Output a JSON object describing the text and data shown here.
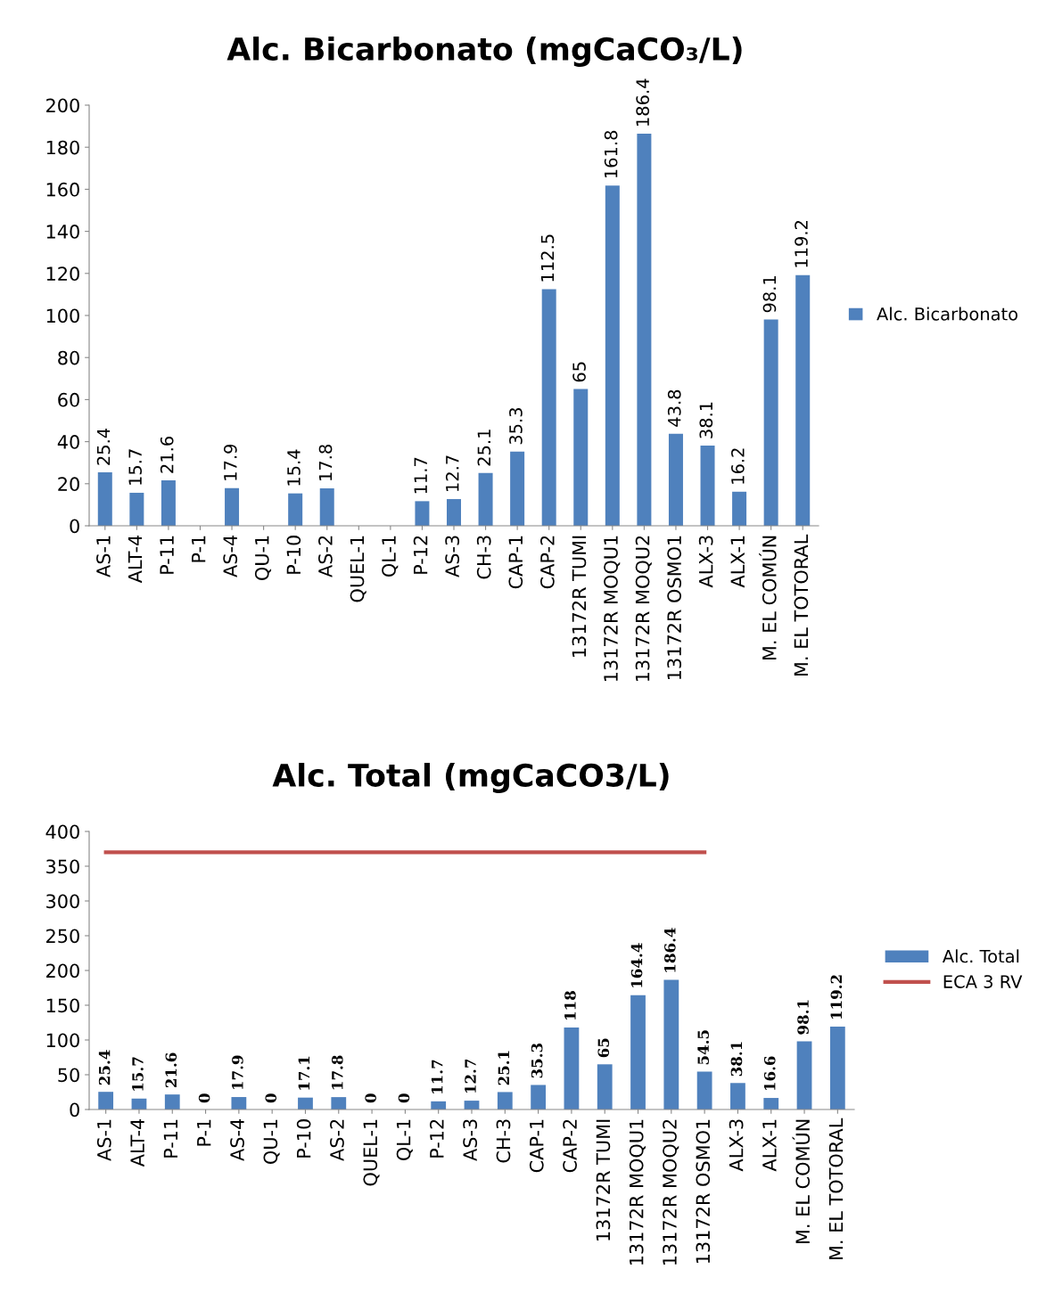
{
  "chart_data": [
    {
      "type": "bar",
      "title": "Alc. Bicarbonato (mgCaCO₃/L)",
      "categories": [
        "AS-1",
        "ALT-4",
        "P-11",
        "P-1",
        "AS-4",
        "QU-1",
        "P-10",
        "AS-2",
        "QUEL-1",
        "QL-1",
        "P-12",
        "AS-3",
        "CH-3",
        "CAP-1",
        "CAP-2",
        "13172R TUMI",
        "13172R MOQU1",
        "13172R MOQU2",
        "13172R OSMO1",
        "ALX-3",
        "ALX-1",
        "M. EL COMÚN",
        "M. EL TOTORAL"
      ],
      "series": [
        {
          "name": "Alc. Bicarbonato",
          "color": "#4f81bd",
          "values": [
            25.4,
            15.7,
            21.6,
            null,
            17.9,
            null,
            15.4,
            17.8,
            null,
            null,
            11.7,
            12.7,
            25.1,
            35.3,
            112.5,
            65,
            161.8,
            186.4,
            43.8,
            38.1,
            16.2,
            98.1,
            119.2
          ],
          "value_labels": [
            "25.4",
            "15.7",
            "21.6",
            null,
            "17.9",
            null,
            "15.4",
            "17.8",
            null,
            null,
            "11.7",
            "12.7",
            "25.1",
            "35.3",
            "112.5",
            "65",
            "161.8",
            "186.4",
            "43.8",
            "38.1",
            "16.2",
            "98.1",
            "119.2"
          ]
        }
      ],
      "ylim": [
        0,
        200
      ],
      "yticks": [
        0,
        20,
        40,
        60,
        80,
        100,
        120,
        140,
        160,
        180,
        200
      ],
      "legend": "right"
    },
    {
      "type": "bar",
      "title": "Alc. Total (mgCaCO3/L)",
      "categories": [
        "AS-1",
        "ALT-4",
        "P-11",
        "P-1",
        "AS-4",
        "QU-1",
        "P-10",
        "AS-2",
        "QUEL-1",
        "QL-1",
        "P-12",
        "AS-3",
        "CH-3",
        "CAP-1",
        "CAP-2",
        "13172R TUMI",
        "13172R MOQU1",
        "13172R MOQU2",
        "13172R OSMO1",
        "ALX-3",
        "ALX-1",
        "M. EL COMÚN",
        "M. EL TOTORAL"
      ],
      "series": [
        {
          "name": "Alc. Total",
          "color": "#4f81bd",
          "values": [
            25.4,
            15.7,
            21.6,
            0,
            17.9,
            0,
            17.1,
            17.8,
            0,
            0,
            11.7,
            12.7,
            25.1,
            35.3,
            118,
            65,
            164.4,
            186.4,
            54.5,
            38.1,
            16.6,
            98.1,
            119.2
          ],
          "value_labels": [
            "25.4",
            "15.7",
            "21.6",
            "0",
            "17.9",
            "0",
            "17.1",
            "17.8",
            "0",
            "0",
            "11.7",
            "12.7",
            "25.1",
            "35.3",
            "118",
            "65",
            "164.4",
            "186.4",
            "54.5",
            "38.1",
            "16.6",
            "98.1",
            "119.2"
          ]
        },
        {
          "name": "ECA 3 RV",
          "type": "line",
          "color": "#c0504d",
          "values": [
            370,
            370,
            370,
            370,
            370,
            370,
            370,
            370,
            370,
            370,
            370,
            370,
            370,
            370,
            370,
            370,
            370,
            370,
            370,
            null,
            null,
            null,
            null
          ]
        }
      ],
      "ylim": [
        0,
        400
      ],
      "yticks": [
        0,
        50,
        100,
        150,
        200,
        250,
        300,
        350,
        400
      ],
      "legend": "right"
    }
  ]
}
